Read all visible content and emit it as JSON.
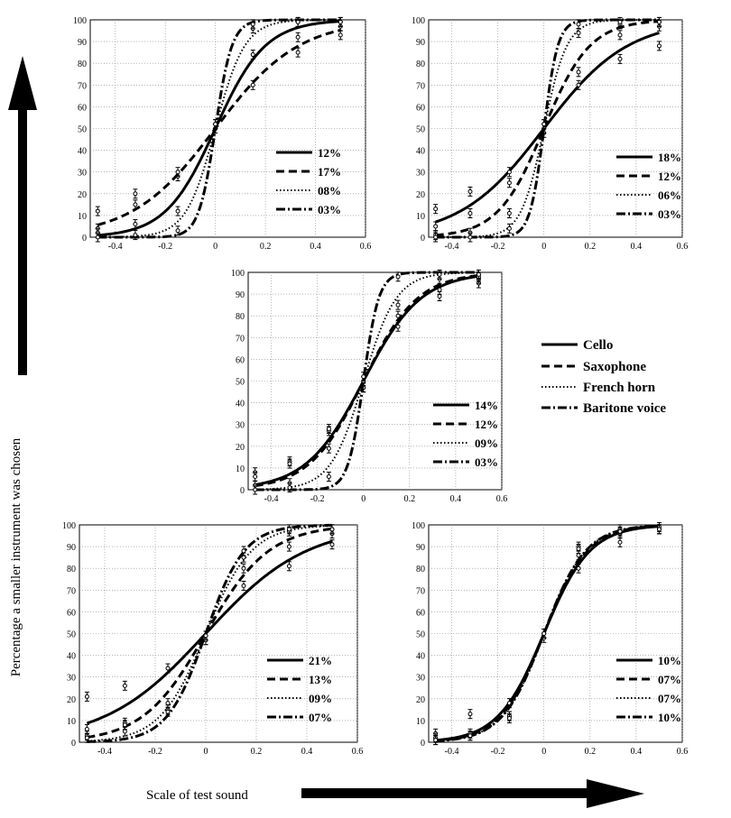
{
  "figure": {
    "y_caption": "Percentage a smaller instrument was chosen",
    "x_caption": "Scale of test sound"
  },
  "legend": [
    {
      "name": "Cello",
      "style": "solid"
    },
    {
      "name": "Saxophone",
      "style": "dashed"
    },
    {
      "name": "French horn",
      "style": "dotted"
    },
    {
      "name": "Baritone voice",
      "style": "dashdot"
    }
  ],
  "chart_data": [
    {
      "type": "line",
      "panel": "top-left",
      "x_ticks": [
        "-0.4",
        "-0.2",
        "0",
        "0.2",
        "0.4",
        "0.6"
      ],
      "y_ticks": [
        "0",
        "10",
        "20",
        "30",
        "40",
        "50",
        "60",
        "70",
        "80",
        "90",
        "100"
      ],
      "xlim": [
        -0.5,
        0.6
      ],
      "ylim": [
        0,
        100
      ],
      "grid": true,
      "x": [
        -0.47,
        -0.32,
        -0.15,
        0,
        0.15,
        0.33,
        0.5
      ],
      "series": [
        {
          "name": "Cello",
          "label": "12%",
          "slope": 10,
          "points": [
            4,
            15,
            28,
            50,
            84,
            92,
            97
          ]
        },
        {
          "name": "Saxophone",
          "label": "17%",
          "slope": 6,
          "points": [
            12,
            20,
            30,
            50,
            70,
            85,
            93
          ]
        },
        {
          "name": "French horn",
          "label": "08%",
          "slope": 17,
          "points": [
            2,
            6,
            12,
            52,
            96,
            99,
            99
          ]
        },
        {
          "name": "Baritone voice",
          "label": "03%",
          "slope": 30,
          "points": [
            0,
            1,
            3,
            52,
            98,
            99,
            99
          ]
        }
      ]
    },
    {
      "type": "line",
      "panel": "top-right",
      "x_ticks": [
        "-0.4",
        "-0.2",
        "0",
        "0.2",
        "0.4",
        "0.6"
      ],
      "y_ticks": [
        "0",
        "10",
        "20",
        "30",
        "40",
        "50",
        "60",
        "70",
        "80",
        "90",
        "100"
      ],
      "xlim": [
        -0.5,
        0.6
      ],
      "ylim": [
        0,
        100
      ],
      "grid": true,
      "x": [
        -0.47,
        -0.32,
        -0.15,
        0,
        0.15,
        0.33,
        0.5
      ],
      "series": [
        {
          "name": "Cello",
          "label": "18%",
          "slope": 5.5,
          "points": [
            13,
            21,
            30,
            48,
            70,
            82,
            88
          ]
        },
        {
          "name": "Saxophone",
          "label": "12%",
          "slope": 10,
          "points": [
            5,
            11,
            25,
            50,
            76,
            93,
            97
          ]
        },
        {
          "name": "French horn",
          "label": "06%",
          "slope": 20,
          "points": [
            1,
            2,
            11,
            52,
            94,
            98,
            99
          ]
        },
        {
          "name": "Baritone voice",
          "label": "03%",
          "slope": 33,
          "points": [
            0,
            0,
            4,
            52,
            98,
            99,
            99
          ]
        }
      ]
    },
    {
      "type": "line",
      "panel": "center",
      "x_ticks": [
        "-0.4",
        "-0.2",
        "0",
        "0.2",
        "0.4",
        "0.6"
      ],
      "y_ticks": [
        "0",
        "10",
        "20",
        "30",
        "40",
        "50",
        "60",
        "70",
        "80",
        "90",
        "100"
      ],
      "xlim": [
        -0.5,
        0.6
      ],
      "ylim": [
        0,
        100
      ],
      "grid": true,
      "x": [
        -0.47,
        -0.32,
        -0.15,
        0,
        0.15,
        0.33,
        0.5
      ],
      "series": [
        {
          "name": "Cello",
          "label": "14%",
          "slope": 8,
          "points": [
            8,
            13,
            27,
            47,
            75,
            89,
            95
          ]
        },
        {
          "name": "Saxophone",
          "label": "12%",
          "slope": 8.5,
          "points": [
            6,
            12,
            28,
            47,
            80,
            92,
            97
          ]
        },
        {
          "name": "French horn",
          "label": "09%",
          "slope": 14,
          "points": [
            2,
            3,
            19,
            50,
            85,
            97,
            98
          ]
        },
        {
          "name": "Baritone voice",
          "label": "03%",
          "slope": 30,
          "points": [
            0,
            1,
            6,
            52,
            98,
            99,
            99
          ]
        }
      ]
    },
    {
      "type": "line",
      "panel": "bottom-left",
      "x_ticks": [
        "-0.4",
        "-0.2",
        "0",
        "0.2",
        "0.4",
        "0.6"
      ],
      "y_ticks": [
        "0",
        "10",
        "20",
        "30",
        "40",
        "50",
        "60",
        "70",
        "80",
        "90",
        "100"
      ],
      "xlim": [
        -0.5,
        0.6
      ],
      "ylim": [
        0,
        100
      ],
      "grid": true,
      "x": [
        -0.47,
        -0.32,
        -0.15,
        0,
        0.15,
        0.33,
        0.5
      ],
      "series": [
        {
          "name": "Cello",
          "label": "21%",
          "slope": 5,
          "points": [
            21,
            26,
            34,
            47,
            72,
            81,
            91
          ]
        },
        {
          "name": "Saxophone",
          "label": "13%",
          "slope": 8,
          "points": [
            6,
            9,
            15,
            47,
            80,
            90,
            96
          ]
        },
        {
          "name": "French horn",
          "label": "09%",
          "slope": 11,
          "points": [
            3,
            8,
            14,
            49,
            85,
            97,
            98
          ]
        },
        {
          "name": "Baritone voice",
          "label": "07%",
          "slope": 13,
          "points": [
            2,
            5,
            18,
            49,
            88,
            98,
            98
          ]
        }
      ]
    },
    {
      "type": "line",
      "panel": "bottom-right",
      "x_ticks": [
        "-0.4",
        "-0.2",
        "0",
        "0.2",
        "0.4",
        "0.6"
      ],
      "y_ticks": [
        "0",
        "10",
        "20",
        "30",
        "40",
        "50",
        "60",
        "70",
        "80",
        "90",
        "100"
      ],
      "xlim": [
        -0.5,
        0.6
      ],
      "ylim": [
        0,
        100
      ],
      "grid": true,
      "x": [
        -0.47,
        -0.32,
        -0.15,
        0,
        0.15,
        0.33,
        0.5
      ],
      "series": [
        {
          "name": "Cello",
          "label": "10%",
          "slope": 10,
          "points": [
            4,
            13,
            18,
            48,
            80,
            92,
            98
          ]
        },
        {
          "name": "Saxophone",
          "label": "07%",
          "slope": 10.5,
          "points": [
            2,
            4,
            12,
            50,
            86,
            96,
            98
          ]
        },
        {
          "name": "French horn",
          "label": "07%",
          "slope": 11,
          "points": [
            1,
            3,
            12,
            50,
            90,
            98,
            99
          ]
        },
        {
          "name": "Baritone voice",
          "label": "10%",
          "slope": 11,
          "points": [
            1,
            3,
            11,
            50,
            89,
            97,
            98
          ]
        }
      ]
    }
  ]
}
